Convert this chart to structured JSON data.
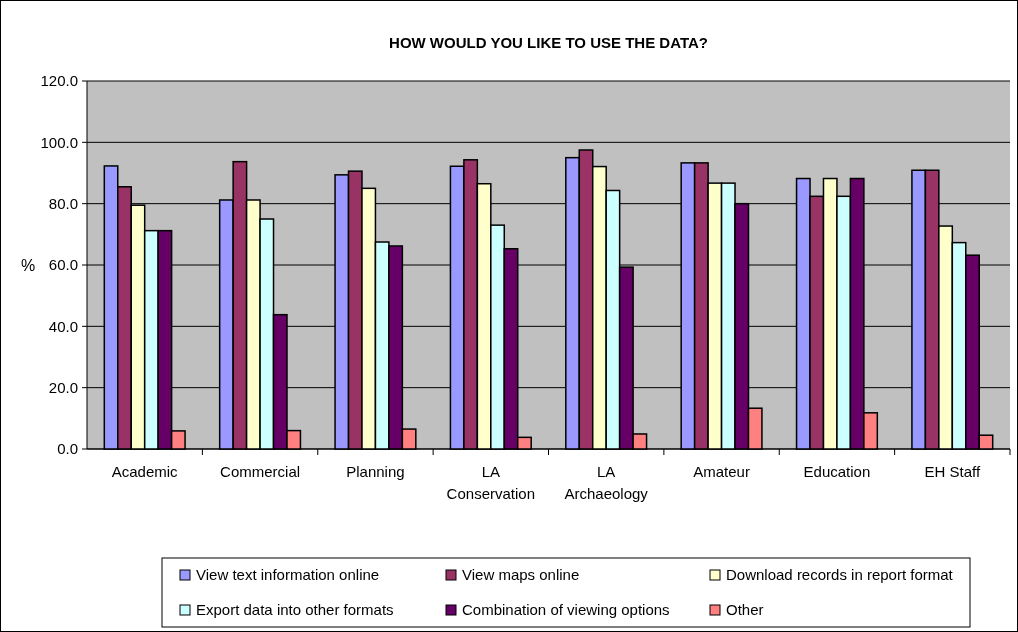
{
  "chart_data": {
    "type": "bar",
    "title": "HOW WOULD YOU LIKE TO USE THE DATA?",
    "ylabel": "%",
    "categories": [
      "Academic",
      "Commercial",
      "Planning",
      "LA Conservation",
      "LA Archaeology",
      "Amateur",
      "Education",
      "EH Staff"
    ],
    "series": [
      {
        "name": "View text information online",
        "color": "#9999ff",
        "values": [
          92.3,
          81.2,
          89.4,
          92.2,
          95.0,
          93.3,
          88.2,
          90.9
        ]
      },
      {
        "name": "View maps online",
        "color": "#993366",
        "values": [
          85.5,
          93.7,
          90.6,
          94.3,
          97.5,
          93.3,
          82.4,
          90.9
        ]
      },
      {
        "name": "Download records in report format",
        "color": "#ffffcc",
        "values": [
          79.5,
          81.2,
          85.0,
          86.5,
          92.1,
          86.7,
          88.2,
          72.7
        ]
      },
      {
        "name": "Export data into other formats",
        "color": "#ccffff",
        "values": [
          71.2,
          75.0,
          67.5,
          73.0,
          84.3,
          86.7,
          82.4,
          67.3
        ]
      },
      {
        "name": "Combination of viewing options",
        "color": "#660066",
        "values": [
          71.2,
          43.8,
          66.2,
          65.3,
          59.3,
          80.0,
          88.2,
          63.2
        ]
      },
      {
        "name": "Other",
        "color": "#ff8080",
        "values": [
          5.9,
          6.0,
          6.5,
          3.8,
          4.9,
          13.3,
          11.8,
          4.5
        ]
      }
    ],
    "ylim": [
      0,
      120
    ],
    "yticks": [
      {
        "value": 0,
        "label": "0.0"
      },
      {
        "value": 20,
        "label": "20.0"
      },
      {
        "value": 40,
        "label": "40.0"
      },
      {
        "value": 60,
        "label": "60.0"
      },
      {
        "value": 80,
        "label": "80.0"
      },
      {
        "value": 100,
        "label": "100.0"
      },
      {
        "value": 120,
        "label": "120.0"
      }
    ],
    "grid": "y",
    "legend": "bottom"
  }
}
